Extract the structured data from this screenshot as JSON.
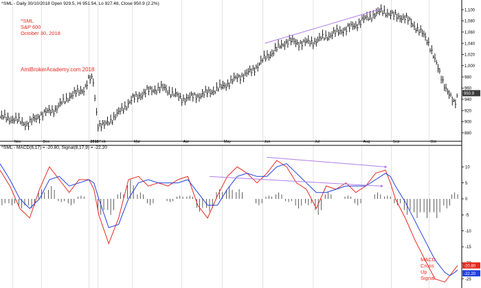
{
  "colors": {
    "background": "#ffffff",
    "grid": "#cfcfcf",
    "bars": "#000000",
    "macd": "#e8281e",
    "signal": "#1f3fe0",
    "annotation_text": "#e8281e",
    "trendline": "#b07de8",
    "price_tag_bg": "#3a3a3a",
    "macd_tag_bg": "#e8281e",
    "signal_tag_bg": "#1f3fe0"
  },
  "chart_data": [
    {
      "type": "line",
      "title": "^SML - Daily 30/10/2018 Open 929.5, Hi 951.54, Lo 927.48, Close 950.9 (2.2%)",
      "annotation": [
        "^SML",
        "S&P 600",
        "October 30, 2018"
      ],
      "watermark": "AmiBrokerAcademy.com  2018",
      "x_labels": [
        "Nov",
        "Dec",
        "2018",
        "Feb",
        "Mar",
        "Apr",
        "May",
        "Jun",
        "Jul",
        "Aug",
        "Sep",
        "Oct"
      ],
      "x_label_days": [
        13,
        42,
        90,
        99,
        134,
        184,
        225,
        266,
        317,
        366,
        396,
        434
      ],
      "ylim": [
        870,
        1105
      ],
      "y_ticks": [
        880,
        900,
        920,
        940,
        960,
        980,
        1000,
        1020,
        1040,
        1060,
        1080,
        1100
      ],
      "last_price_label": "950.9",
      "last_price": 950.9,
      "series": [
        {
          "x": [
            0,
            14,
            28,
            42,
            56,
            70,
            85,
            90,
            94,
            99,
            105,
            120,
            134,
            150,
            165,
            175,
            184,
            205,
            225,
            240,
            255,
            266,
            280,
            292,
            300,
            317,
            330,
            345,
            360,
            366,
            380,
            388,
            396,
            410,
            420,
            428,
            434,
            440,
            445,
            450,
            455,
            460,
            463
          ],
          "values": [
            908,
            904,
            895,
            913,
            922,
            945,
            958,
            975,
            976,
            895,
            892,
            915,
            940,
            955,
            960,
            950,
            940,
            948,
            962,
            978,
            990,
            1010,
            1030,
            1045,
            1040,
            1042,
            1052,
            1062,
            1072,
            1080,
            1092,
            1098,
            1090,
            1085,
            1070,
            1055,
            1040,
            1010,
            985,
            965,
            945,
            930,
            950
          ]
        }
      ],
      "trendline": {
        "from": [
          268,
          1040
        ],
        "to": [
          385,
          1101
        ]
      }
    },
    {
      "type": "line",
      "title": "^SML - MACD(8,17) = -20.80, Signal(8,17,9) = -22.20",
      "annotation": [
        "MACD",
        "Cross",
        "Up",
        "Signal"
      ],
      "ylim": [
        -27,
        15
      ],
      "y_ticks": [
        10,
        5,
        0,
        -5,
        -10,
        -15,
        -20,
        -25
      ],
      "tag_labels": [
        "-20.80",
        "-22.20"
      ],
      "series": [
        {
          "name": "MACD(8,17)",
          "x": [
            0,
            10,
            20,
            30,
            40,
            50,
            60,
            70,
            80,
            90,
            95,
            100,
            110,
            120,
            130,
            140,
            150,
            160,
            170,
            180,
            190,
            200,
            210,
            220,
            230,
            240,
            250,
            260,
            270,
            280,
            290,
            300,
            310,
            320,
            330,
            340,
            350,
            360,
            370,
            380,
            390,
            395,
            400,
            410,
            420,
            430,
            440,
            450,
            455,
            460,
            463
          ],
          "values": [
            9,
            4,
            -3,
            -6,
            3,
            10,
            6,
            2,
            6,
            6,
            3,
            -5,
            -14,
            -6,
            6,
            7,
            4,
            5,
            4,
            6,
            7,
            -2,
            -6,
            1,
            7,
            10,
            8,
            5,
            8,
            12,
            10,
            5,
            3,
            -3,
            4,
            3,
            5,
            2,
            4,
            8,
            9,
            5,
            0,
            -6,
            -13,
            -19,
            -25,
            -26,
            -24,
            -22,
            -20.8
          ]
        },
        {
          "name": "Signal(8,17,9)",
          "x": [
            0,
            10,
            20,
            30,
            40,
            50,
            60,
            70,
            80,
            90,
            95,
            100,
            110,
            120,
            130,
            140,
            150,
            160,
            170,
            180,
            190,
            200,
            210,
            220,
            230,
            240,
            250,
            260,
            270,
            280,
            290,
            300,
            310,
            320,
            330,
            340,
            350,
            360,
            370,
            380,
            390,
            395,
            400,
            410,
            420,
            430,
            440,
            450,
            455,
            460,
            463
          ],
          "values": [
            11,
            6,
            0,
            -3,
            0,
            6,
            7,
            4,
            5,
            6,
            5,
            0,
            -9,
            -8,
            0,
            5,
            6,
            5,
            5,
            5,
            6,
            2,
            -2,
            -2,
            3,
            7,
            8,
            7,
            7,
            10,
            11,
            8,
            5,
            2,
            2,
            3,
            4,
            4,
            4,
            6,
            8,
            7,
            4,
            -1,
            -7,
            -13,
            -19,
            -23,
            -24,
            -23,
            -22.2
          ]
        }
      ],
      "histogram_x": [
        2,
        12,
        22,
        32,
        42,
        52,
        62,
        72,
        82,
        92,
        102,
        112,
        122,
        132,
        142,
        152,
        162,
        172,
        182,
        192,
        202,
        212,
        222,
        232,
        242,
        252,
        262,
        272,
        282,
        292,
        302,
        312,
        322,
        332,
        342,
        352,
        362,
        372,
        382,
        392,
        402,
        412,
        422,
        432,
        442,
        452,
        460
      ],
      "histogram": [
        -2,
        -2,
        -3,
        -3,
        3,
        4,
        -1,
        -2,
        1,
        0,
        -5,
        -5,
        2,
        6,
        2,
        -2,
        0,
        -1,
        1,
        1,
        -4,
        -4,
        3,
        4,
        3,
        0,
        -2,
        1,
        2,
        -1,
        -3,
        -2,
        -5,
        2,
        0,
        1,
        -2,
        0,
        2,
        1,
        -2,
        -5,
        -6,
        -6,
        -6,
        -3,
        2
      ],
      "trendlines": [
        {
          "from": [
            270,
            13
          ],
          "to": [
            390,
            10
          ]
        },
        {
          "from": [
            212,
            7
          ],
          "to": [
            386,
            4
          ]
        }
      ]
    }
  ]
}
